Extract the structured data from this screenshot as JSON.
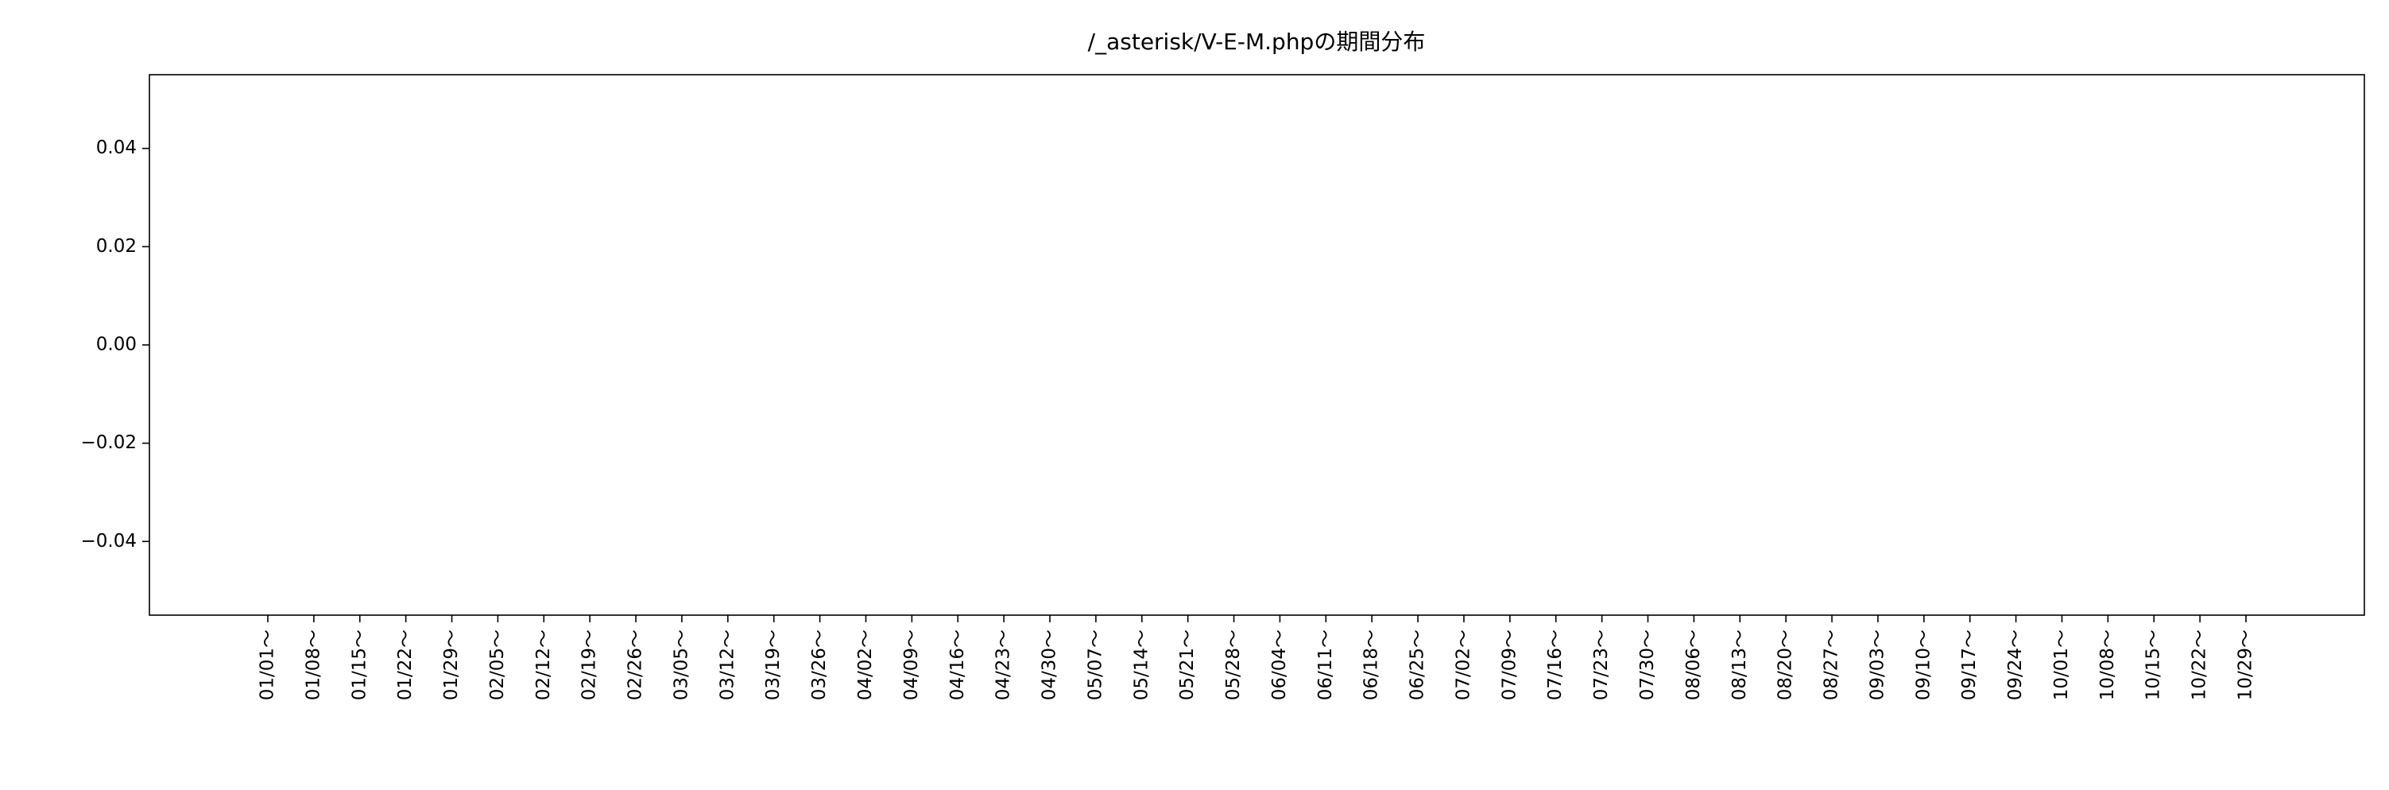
{
  "chart_data": {
    "type": "bar",
    "title": "/_asterisk/V-E-M.phpの期間分布",
    "categories": [
      "01/01～",
      "01/08～",
      "01/15～",
      "01/22～",
      "01/29～",
      "02/05～",
      "02/12～",
      "02/19～",
      "02/26～",
      "03/05～",
      "03/12～",
      "03/19～",
      "03/26～",
      "04/02～",
      "04/09～",
      "04/16～",
      "04/23～",
      "04/30～",
      "05/07～",
      "05/14～",
      "05/21～",
      "05/28～",
      "06/04～",
      "06/11～",
      "06/18～",
      "06/25～",
      "07/02～",
      "07/09～",
      "07/16～",
      "07/23～",
      "07/30～",
      "08/06～",
      "08/13～",
      "08/20～",
      "08/27～",
      "09/03～",
      "09/10～",
      "09/17～",
      "09/24～",
      "10/01～",
      "10/08～",
      "10/15～",
      "10/22～",
      "10/29～"
    ],
    "values": [
      0,
      0,
      0,
      0,
      0,
      0,
      0,
      0,
      0,
      0,
      0,
      0,
      0,
      0,
      0,
      0,
      0,
      0,
      0,
      0,
      0,
      0,
      0,
      0,
      0,
      0,
      0,
      0,
      0,
      0,
      0,
      0,
      0,
      0,
      0,
      0,
      0,
      0,
      0,
      0,
      0,
      0,
      0,
      0
    ],
    "color": "#1f77b4",
    "ylim": [
      -0.055,
      0.055
    ],
    "yticks": [
      {
        "value": -0.04,
        "label": "−0.04"
      },
      {
        "value": -0.02,
        "label": "−0.02"
      },
      {
        "value": 0,
        "label": "0.00"
      },
      {
        "value": 0.02,
        "label": "0.02"
      },
      {
        "value": 0.04,
        "label": "0.04"
      }
    ],
    "grid": false
  }
}
